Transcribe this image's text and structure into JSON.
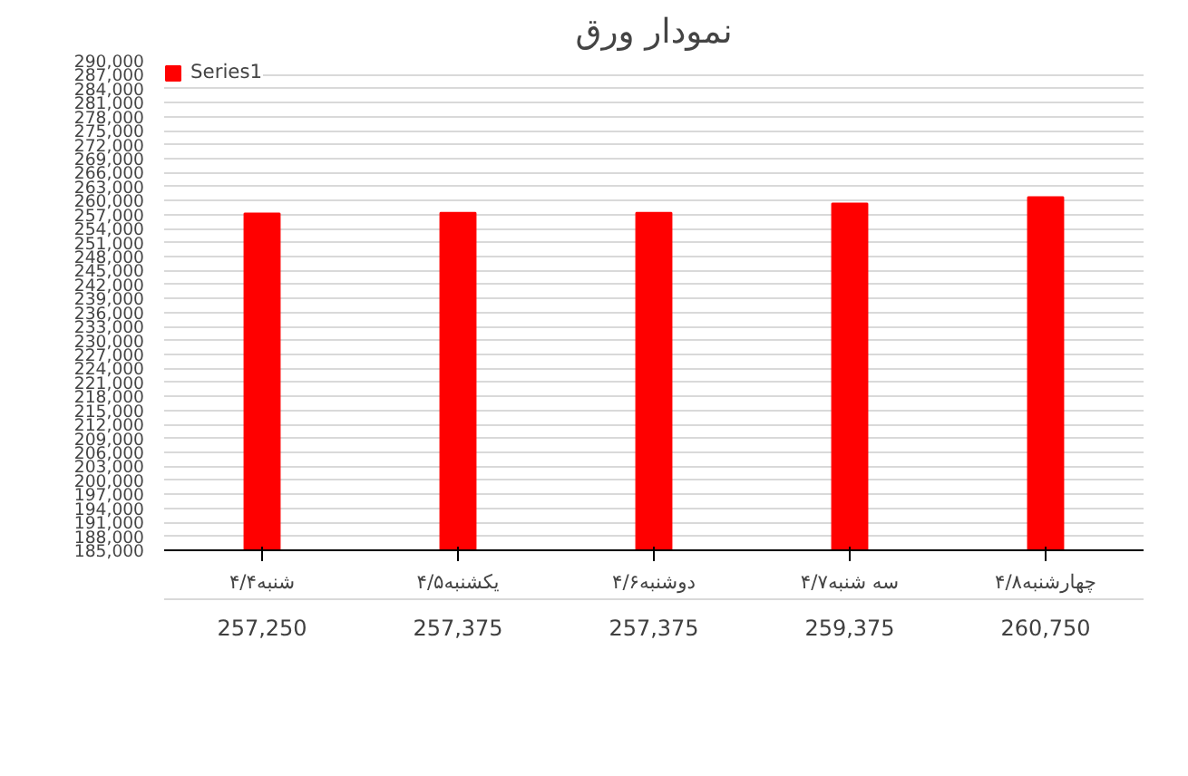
{
  "chart_data": {
    "type": "bar",
    "title": "نمودار ورق",
    "categories": [
      "شنبه۴/۴",
      "یکشنبه۴/۵",
      "دوشنبه۴/۶",
      "سه شنبه۴/۷",
      "چهارشنبه۴/۸"
    ],
    "series": [
      {
        "name": "Series1",
        "color": "#ff0000",
        "values": [
          257250,
          257375,
          257375,
          259375,
          260750
        ],
        "value_labels": [
          "257,250",
          "257,375",
          "257,375",
          "259,375",
          "260,750"
        ]
      }
    ],
    "ylim": [
      185000,
      290000
    ],
    "yticks": [
      {
        "value": 185000,
        "label": "185,000"
      },
      {
        "value": 188000,
        "label": "188,000"
      },
      {
        "value": 191000,
        "label": "191,000"
      },
      {
        "value": 194000,
        "label": "194,000"
      },
      {
        "value": 197000,
        "label": "197,000"
      },
      {
        "value": 200000,
        "label": "200,000"
      },
      {
        "value": 203000,
        "label": "203,000"
      },
      {
        "value": 206000,
        "label": "206,000"
      },
      {
        "value": 209000,
        "label": "209,000"
      },
      {
        "value": 212000,
        "label": "212,000"
      },
      {
        "value": 215000,
        "label": "215,000"
      },
      {
        "value": 218000,
        "label": "218,000"
      },
      {
        "value": 221000,
        "label": "221,000"
      },
      {
        "value": 224000,
        "label": "224,000"
      },
      {
        "value": 227000,
        "label": "227,000"
      },
      {
        "value": 230000,
        "label": "230,000"
      },
      {
        "value": 233000,
        "label": "233,000"
      },
      {
        "value": 236000,
        "label": "236,000"
      },
      {
        "value": 239000,
        "label": "239,000"
      },
      {
        "value": 242000,
        "label": "242,000"
      },
      {
        "value": 245000,
        "label": "245,000"
      },
      {
        "value": 248000,
        "label": "248,000"
      },
      {
        "value": 251000,
        "label": "251,000"
      },
      {
        "value": 254000,
        "label": "254,000"
      },
      {
        "value": 257000,
        "label": "257,000"
      },
      {
        "value": 260000,
        "label": "260,000"
      },
      {
        "value": 263000,
        "label": "263,000"
      },
      {
        "value": 266000,
        "label": "266,000"
      },
      {
        "value": 269000,
        "label": "269,000"
      },
      {
        "value": 272000,
        "label": "272,000"
      },
      {
        "value": 275000,
        "label": "275,000"
      },
      {
        "value": 278000,
        "label": "278,000"
      },
      {
        "value": 281000,
        "label": "281,000"
      },
      {
        "value": 284000,
        "label": "284,000"
      },
      {
        "value": 287000,
        "label": "287,000"
      },
      {
        "value": 290000,
        "label": "290,000"
      }
    ],
    "grid": "y",
    "legend": "top left"
  }
}
